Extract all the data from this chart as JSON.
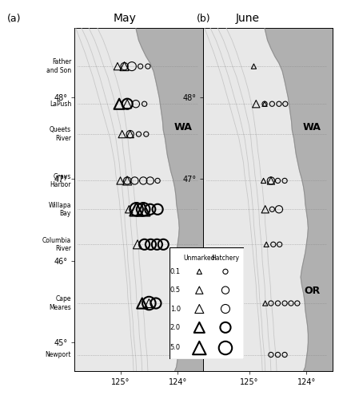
{
  "fig_width": 4.24,
  "fig_height": 5.0,
  "dpi": 100,
  "lon_min": -125.8,
  "lon_max": -123.55,
  "lat_min": 44.65,
  "lat_max": 48.85,
  "panel_a_title": "May",
  "panel_b_title": "June",
  "station_labels": [
    {
      "name": "Father\nand Son",
      "lat": 48.38
    },
    {
      "name": "LaPush",
      "lat": 47.92
    },
    {
      "name": "Queets\nRiver",
      "lat": 47.55
    },
    {
      "name": "Grays\nHarbor",
      "lat": 46.98
    },
    {
      "name": "Willapa\nBay",
      "lat": 46.63
    },
    {
      "name": "Columbia\nRiver",
      "lat": 46.2
    },
    {
      "name": "Cape\nMeares",
      "lat": 45.48
    },
    {
      "name": "Newport",
      "lat": 44.85
    }
  ],
  "transect_lats": [
    48.38,
    47.92,
    47.55,
    46.98,
    46.63,
    46.2,
    45.48,
    44.85
  ],
  "ocean_color": "#e8e8e8",
  "land_color": "#b0b0b0",
  "isobath_color": "#c8c8c8",
  "coast_color": "#909090",
  "size_scale": 18,
  "may_hatchery": [
    {
      "lat": 48.38,
      "lon": -124.93,
      "cpue": 0.5
    },
    {
      "lat": 48.38,
      "lon": -124.8,
      "cpue": 1.0
    },
    {
      "lat": 48.38,
      "lon": -124.65,
      "cpue": 0.1
    },
    {
      "lat": 48.38,
      "lon": -124.52,
      "cpue": 0.1
    },
    {
      "lat": 47.92,
      "lon": -124.88,
      "cpue": 2.0
    },
    {
      "lat": 47.92,
      "lon": -124.73,
      "cpue": 0.5
    },
    {
      "lat": 47.92,
      "lon": -124.58,
      "cpue": 0.1
    },
    {
      "lat": 47.55,
      "lon": -124.83,
      "cpue": 0.5
    },
    {
      "lat": 47.55,
      "lon": -124.68,
      "cpue": 0.1
    },
    {
      "lat": 47.55,
      "lon": -124.55,
      "cpue": 0.1
    },
    {
      "lat": 46.98,
      "lon": -124.88,
      "cpue": 0.5
    },
    {
      "lat": 46.98,
      "lon": -124.75,
      "cpue": 0.5
    },
    {
      "lat": 46.98,
      "lon": -124.6,
      "cpue": 0.5
    },
    {
      "lat": 46.98,
      "lon": -124.48,
      "cpue": 0.5
    },
    {
      "lat": 46.98,
      "lon": -124.35,
      "cpue": 0.1
    },
    {
      "lat": 46.63,
      "lon": -124.72,
      "cpue": 5.0
    },
    {
      "lat": 46.63,
      "lon": -124.6,
      "cpue": 5.0
    },
    {
      "lat": 46.63,
      "lon": -124.48,
      "cpue": 2.0
    },
    {
      "lat": 46.63,
      "lon": -124.35,
      "cpue": 2.0
    },
    {
      "lat": 46.2,
      "lon": -124.58,
      "cpue": 2.0
    },
    {
      "lat": 46.2,
      "lon": -124.47,
      "cpue": 2.0
    },
    {
      "lat": 46.2,
      "lon": -124.36,
      "cpue": 2.0
    },
    {
      "lat": 46.2,
      "lon": -124.25,
      "cpue": 2.0
    },
    {
      "lat": 45.48,
      "lon": -124.5,
      "cpue": 5.0
    },
    {
      "lat": 45.48,
      "lon": -124.38,
      "cpue": 2.0
    }
  ],
  "may_unmarked": [
    {
      "lat": 48.38,
      "lon": -125.05,
      "cpue": 0.5
    },
    {
      "lat": 48.38,
      "lon": -124.93,
      "cpue": 1.0
    },
    {
      "lat": 47.92,
      "lon": -125.02,
      "cpue": 2.0
    },
    {
      "lat": 47.92,
      "lon": -124.88,
      "cpue": 1.0
    },
    {
      "lat": 47.55,
      "lon": -124.97,
      "cpue": 0.5
    },
    {
      "lat": 47.55,
      "lon": -124.83,
      "cpue": 0.5
    },
    {
      "lat": 46.98,
      "lon": -125.0,
      "cpue": 0.5
    },
    {
      "lat": 46.98,
      "lon": -124.88,
      "cpue": 1.0
    },
    {
      "lat": 46.63,
      "lon": -124.85,
      "cpue": 0.5
    },
    {
      "lat": 46.63,
      "lon": -124.72,
      "cpue": 5.0
    },
    {
      "lat": 46.63,
      "lon": -124.6,
      "cpue": 5.0
    },
    {
      "lat": 46.2,
      "lon": -124.7,
      "cpue": 1.0
    },
    {
      "lat": 45.48,
      "lon": -124.62,
      "cpue": 2.0
    },
    {
      "lat": 45.48,
      "lon": -124.5,
      "cpue": 1.0
    }
  ],
  "june_hatchery": [
    {
      "lat": 47.92,
      "lon": -124.73,
      "cpue": 0.1
    },
    {
      "lat": 47.92,
      "lon": -124.6,
      "cpue": 0.1
    },
    {
      "lat": 47.92,
      "lon": -124.48,
      "cpue": 0.1
    },
    {
      "lat": 47.92,
      "lon": -124.37,
      "cpue": 0.1
    },
    {
      "lat": 46.98,
      "lon": -124.62,
      "cpue": 0.5
    },
    {
      "lat": 46.98,
      "lon": -124.5,
      "cpue": 0.1
    },
    {
      "lat": 46.98,
      "lon": -124.38,
      "cpue": 0.1
    },
    {
      "lat": 46.63,
      "lon": -124.6,
      "cpue": 0.1
    },
    {
      "lat": 46.63,
      "lon": -124.48,
      "cpue": 0.5
    },
    {
      "lat": 46.2,
      "lon": -124.58,
      "cpue": 0.1
    },
    {
      "lat": 46.2,
      "lon": -124.47,
      "cpue": 0.1
    },
    {
      "lat": 45.48,
      "lon": -124.62,
      "cpue": 0.1
    },
    {
      "lat": 45.48,
      "lon": -124.5,
      "cpue": 0.1
    },
    {
      "lat": 45.48,
      "lon": -124.38,
      "cpue": 0.1
    },
    {
      "lat": 45.48,
      "lon": -124.27,
      "cpue": 0.1
    },
    {
      "lat": 45.48,
      "lon": -124.16,
      "cpue": 0.1
    },
    {
      "lat": 44.85,
      "lon": -124.62,
      "cpue": 0.1
    },
    {
      "lat": 44.85,
      "lon": -124.5,
      "cpue": 0.1
    },
    {
      "lat": 44.85,
      "lon": -124.38,
      "cpue": 0.1
    }
  ],
  "june_unmarked": [
    {
      "lat": 48.38,
      "lon": -124.92,
      "cpue": 0.1
    },
    {
      "lat": 47.92,
      "lon": -124.88,
      "cpue": 0.5
    },
    {
      "lat": 47.92,
      "lon": -124.73,
      "cpue": 0.1
    },
    {
      "lat": 46.98,
      "lon": -124.75,
      "cpue": 0.1
    },
    {
      "lat": 46.98,
      "lon": -124.62,
      "cpue": 0.5
    },
    {
      "lat": 46.63,
      "lon": -124.72,
      "cpue": 0.5
    },
    {
      "lat": 46.2,
      "lon": -124.7,
      "cpue": 0.1
    },
    {
      "lat": 45.48,
      "lon": -124.72,
      "cpue": 0.1
    }
  ],
  "coastline": [
    [
      -124.73,
      48.85
    ],
    [
      -124.68,
      48.7
    ],
    [
      -124.62,
      48.6
    ],
    [
      -124.55,
      48.5
    ],
    [
      -124.48,
      48.42
    ],
    [
      -124.42,
      48.32
    ],
    [
      -124.38,
      48.2
    ],
    [
      -124.35,
      48.1
    ],
    [
      -124.32,
      48.0
    ],
    [
      -124.3,
      47.9
    ],
    [
      -124.28,
      47.8
    ],
    [
      -124.26,
      47.7
    ],
    [
      -124.25,
      47.6
    ],
    [
      -124.22,
      47.5
    ],
    [
      -124.2,
      47.4
    ],
    [
      -124.18,
      47.3
    ],
    [
      -124.15,
      47.2
    ],
    [
      -124.12,
      47.1
    ],
    [
      -124.08,
      47.0
    ],
    [
      -124.05,
      46.9
    ],
    [
      -124.03,
      46.8
    ],
    [
      -124.02,
      46.7
    ],
    [
      -124.0,
      46.6
    ],
    [
      -123.98,
      46.5
    ],
    [
      -123.97,
      46.4
    ],
    [
      -123.98,
      46.3
    ],
    [
      -124.0,
      46.2
    ],
    [
      -124.02,
      46.1
    ],
    [
      -124.05,
      46.0
    ],
    [
      -124.08,
      45.9
    ],
    [
      -124.1,
      45.8
    ],
    [
      -124.08,
      45.7
    ],
    [
      -124.05,
      45.6
    ],
    [
      -124.03,
      45.5
    ],
    [
      -124.02,
      45.4
    ],
    [
      -124.0,
      45.3
    ],
    [
      -123.98,
      45.2
    ],
    [
      -123.97,
      45.1
    ],
    [
      -123.97,
      45.0
    ],
    [
      -123.98,
      44.9
    ],
    [
      -124.0,
      44.8
    ],
    [
      -124.02,
      44.7
    ],
    [
      -124.05,
      44.65
    ]
  ],
  "isobaths": [
    [
      [
        -125.4,
        48.85
      ],
      [
        -125.3,
        48.7
      ],
      [
        -125.22,
        48.55
      ],
      [
        -125.15,
        48.4
      ],
      [
        -125.08,
        48.25
      ],
      [
        -125.02,
        48.1
      ],
      [
        -124.97,
        47.95
      ],
      [
        -124.93,
        47.8
      ],
      [
        -124.9,
        47.65
      ],
      [
        -124.87,
        47.5
      ],
      [
        -124.85,
        47.35
      ],
      [
        -124.82,
        47.2
      ],
      [
        -124.8,
        47.05
      ],
      [
        -124.77,
        46.9
      ],
      [
        -124.75,
        46.75
      ],
      [
        -124.73,
        46.6
      ],
      [
        -124.72,
        46.45
      ],
      [
        -124.7,
        46.3
      ],
      [
        -124.68,
        46.15
      ],
      [
        -124.67,
        46.0
      ],
      [
        -124.65,
        45.85
      ],
      [
        -124.63,
        45.7
      ],
      [
        -124.62,
        45.55
      ],
      [
        -124.6,
        45.4
      ],
      [
        -124.58,
        45.25
      ],
      [
        -124.57,
        45.1
      ],
      [
        -124.55,
        44.95
      ],
      [
        -124.53,
        44.8
      ],
      [
        -124.52,
        44.65
      ]
    ],
    [
      [
        -125.55,
        48.85
      ],
      [
        -125.45,
        48.7
      ],
      [
        -125.37,
        48.55
      ],
      [
        -125.3,
        48.4
      ],
      [
        -125.22,
        48.25
      ],
      [
        -125.16,
        48.1
      ],
      [
        -125.1,
        47.95
      ],
      [
        -125.05,
        47.8
      ],
      [
        -125.0,
        47.65
      ],
      [
        -124.97,
        47.5
      ],
      [
        -124.95,
        47.35
      ],
      [
        -124.92,
        47.2
      ],
      [
        -124.9,
        47.05
      ],
      [
        -124.87,
        46.9
      ],
      [
        -124.85,
        46.75
      ],
      [
        -124.83,
        46.6
      ],
      [
        -124.82,
        46.45
      ],
      [
        -124.8,
        46.3
      ],
      [
        -124.78,
        46.15
      ],
      [
        -124.77,
        46.0
      ],
      [
        -124.75,
        45.85
      ],
      [
        -124.73,
        45.7
      ],
      [
        -124.72,
        45.55
      ],
      [
        -124.7,
        45.4
      ],
      [
        -124.68,
        45.25
      ],
      [
        -124.67,
        45.1
      ],
      [
        -124.65,
        44.95
      ],
      [
        -124.63,
        44.8
      ],
      [
        -124.62,
        44.65
      ]
    ],
    [
      [
        -125.68,
        48.85
      ],
      [
        -125.58,
        48.7
      ],
      [
        -125.5,
        48.55
      ],
      [
        -125.43,
        48.4
      ],
      [
        -125.36,
        48.25
      ],
      [
        -125.3,
        48.1
      ],
      [
        -125.24,
        47.95
      ],
      [
        -125.18,
        47.8
      ],
      [
        -125.13,
        47.65
      ],
      [
        -125.08,
        47.5
      ],
      [
        -125.05,
        47.35
      ],
      [
        -125.02,
        47.2
      ],
      [
        -125.0,
        47.05
      ],
      [
        -124.97,
        46.9
      ],
      [
        -124.95,
        46.75
      ],
      [
        -124.93,
        46.6
      ],
      [
        -124.92,
        46.45
      ],
      [
        -124.9,
        46.3
      ],
      [
        -124.88,
        46.15
      ],
      [
        -124.87,
        46.0
      ],
      [
        -124.85,
        45.85
      ],
      [
        -124.83,
        45.7
      ],
      [
        -124.82,
        45.55
      ],
      [
        -124.8,
        45.4
      ],
      [
        -124.78,
        45.25
      ],
      [
        -124.77,
        45.1
      ],
      [
        -124.75,
        44.95
      ],
      [
        -124.73,
        44.8
      ],
      [
        -124.72,
        44.65
      ]
    ],
    [
      [
        -125.78,
        48.85
      ],
      [
        -125.7,
        48.7
      ],
      [
        -125.62,
        48.55
      ],
      [
        -125.55,
        48.4
      ],
      [
        -125.48,
        48.25
      ],
      [
        -125.42,
        48.1
      ],
      [
        -125.36,
        47.95
      ],
      [
        -125.3,
        47.8
      ],
      [
        -125.24,
        47.65
      ],
      [
        -125.18,
        47.5
      ],
      [
        -125.14,
        47.35
      ],
      [
        -125.1,
        47.2
      ],
      [
        -125.08,
        47.05
      ],
      [
        -125.05,
        46.9
      ],
      [
        -125.02,
        46.75
      ],
      [
        -125.0,
        46.6
      ],
      [
        -124.98,
        46.45
      ],
      [
        -124.96,
        46.3
      ],
      [
        -124.94,
        46.15
      ],
      [
        -124.92,
        46.0
      ],
      [
        -124.9,
        45.85
      ],
      [
        -124.88,
        45.7
      ],
      [
        -124.87,
        45.55
      ],
      [
        -124.85,
        45.4
      ],
      [
        -124.83,
        45.25
      ],
      [
        -124.82,
        45.1
      ],
      [
        -124.8,
        44.95
      ],
      [
        -124.78,
        44.8
      ],
      [
        -124.77,
        44.65
      ]
    ]
  ],
  "legend_sizes": [
    0.1,
    0.5,
    1.0,
    2.0,
    5.0
  ],
  "legend_labels": [
    "0.1",
    "0.5",
    "1.0",
    "2.0",
    "5.0"
  ]
}
